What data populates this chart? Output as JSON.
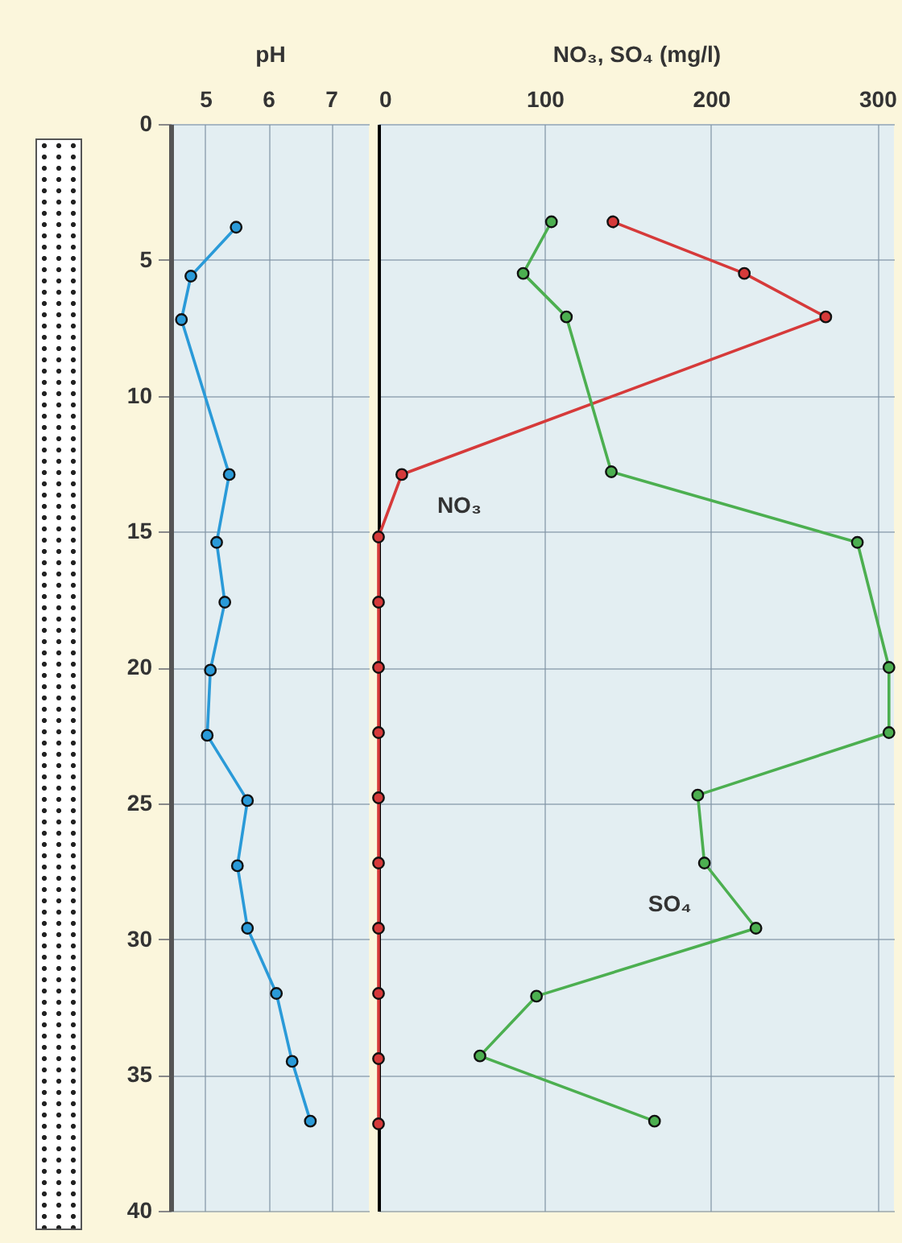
{
  "chart_data": [
    {
      "type": "line",
      "xlabel": "pH",
      "xlim": [
        4.45,
        7.6
      ],
      "xticks": [
        5,
        6,
        7
      ],
      "ylim": [
        40,
        0
      ],
      "yticks": [
        0,
        5,
        10,
        15,
        20,
        25,
        30,
        35,
        40
      ],
      "grid": true,
      "marker": "circle",
      "line_style": "solid",
      "series": [
        {
          "color": "#2a9ad8",
          "x": [
            5.49,
            4.77,
            4.62,
            5.38,
            5.18,
            5.31,
            5.08,
            5.03,
            5.67,
            5.51,
            5.67,
            6.13,
            6.38,
            6.67
          ],
          "values": [
            3.8,
            5.6,
            7.2,
            12.9,
            15.4,
            17.6,
            20.1,
            22.5,
            24.9,
            27.3,
            29.6,
            32.0,
            34.5,
            36.7
          ]
        }
      ]
    },
    {
      "type": "line",
      "xlabel": "NO₃, SO₄ (mg/l)",
      "xlim": [
        0,
        310
      ],
      "xticks": [
        0,
        100,
        200,
        300
      ],
      "ylim": [
        40,
        0
      ],
      "yticks": [
        0,
        5,
        10,
        15,
        20,
        25,
        30,
        35,
        40
      ],
      "tick_labels": "x",
      "grid": true,
      "marker": "circle",
      "line_style": "solid",
      "series": [
        {
          "name": "NO₃",
          "color": "#d63a3a",
          "x": [
            141,
            220,
            269,
            14,
            0,
            0,
            0,
            0,
            0,
            0,
            0,
            0,
            0,
            0
          ],
          "values": [
            3.6,
            5.5,
            7.1,
            12.9,
            15.2,
            17.6,
            20.0,
            22.4,
            24.8,
            27.2,
            29.6,
            32.0,
            34.4,
            36.8
          ]
        },
        {
          "name": "SO₄",
          "color": "#4caf50",
          "x": [
            104,
            87,
            113,
            140,
            288,
            307,
            307,
            192,
            196,
            227,
            95,
            61,
            166
          ],
          "values": [
            3.6,
            5.5,
            7.1,
            12.8,
            15.4,
            20.0,
            22.4,
            24.7,
            27.2,
            29.6,
            32.1,
            34.3,
            36.7
          ]
        }
      ]
    }
  ]
}
